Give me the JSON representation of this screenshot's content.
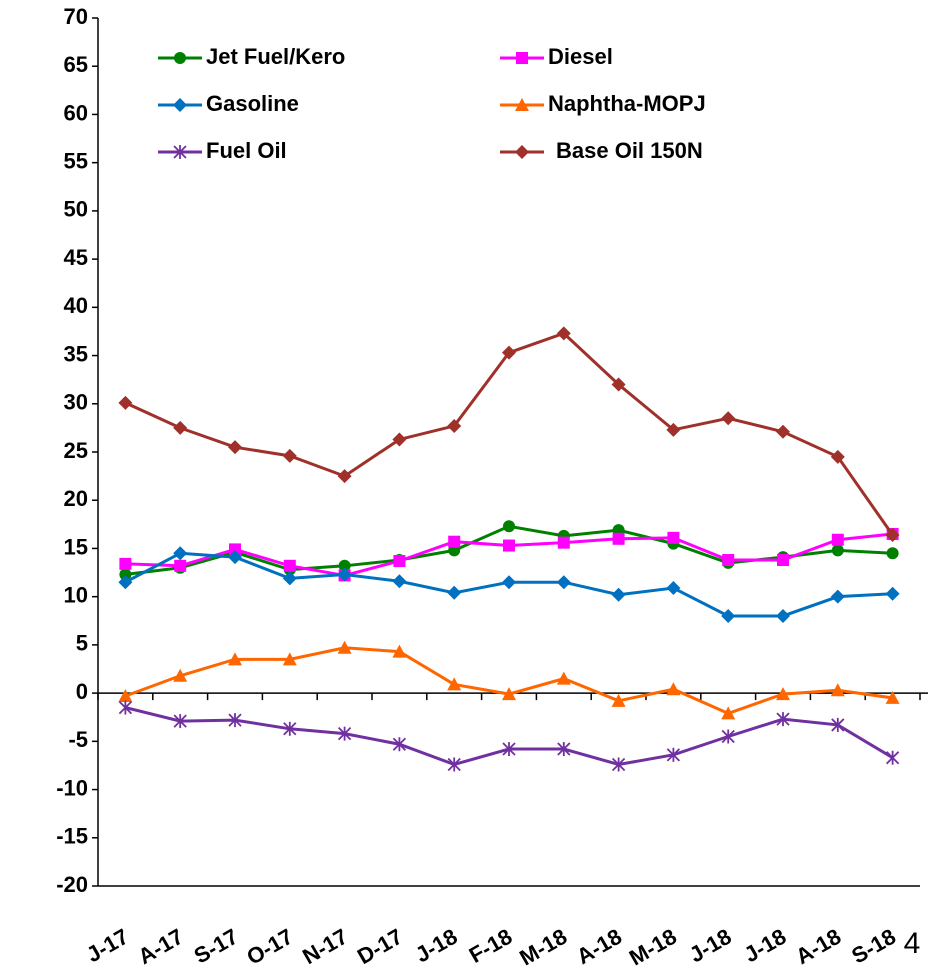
{
  "chart_data": {
    "type": "line",
    "categories": [
      "J-17",
      "A-17",
      "S-17",
      "O-17",
      "N-17",
      "D-17",
      "J-18",
      "F-18",
      "M-18",
      "A-18",
      "M-18",
      "J-18",
      "J-18",
      "A-18",
      "S-18"
    ],
    "series": [
      {
        "name": "Jet Fuel/Kero",
        "color": "#008000",
        "marker": "circle",
        "values": [
          12.3,
          13,
          14.6,
          12.8,
          13.2,
          13.8,
          14.8,
          17.3,
          16.3,
          16.9,
          15.5,
          13.5,
          14.1,
          14.8,
          14.5
        ]
      },
      {
        "name": "Diesel",
        "color": "#ff00ff",
        "marker": "square",
        "values": [
          13.4,
          13.2,
          14.9,
          13.2,
          12.2,
          13.7,
          15.7,
          15.3,
          15.6,
          16,
          16.1,
          13.8,
          13.8,
          15.9,
          16.5
        ]
      },
      {
        "name": "Gasoline",
        "color": "#0070c0",
        "marker": "diamond",
        "values": [
          11.5,
          14.5,
          14.1,
          11.9,
          12.3,
          11.6,
          10.4,
          11.5,
          11.5,
          10.2,
          10.9,
          8,
          8,
          10,
          10.3
        ]
      },
      {
        "name": "Naphtha-MOPJ",
        "color": "#ff6600",
        "marker": "triangle",
        "values": [
          -0.3,
          1.8,
          3.5,
          3.5,
          4.7,
          4.3,
          0.9,
          -0.1,
          1.5,
          -0.8,
          0.4,
          -2.1,
          -0.1,
          0.3,
          -0.5
        ]
      },
      {
        "name": "Fuel Oil",
        "color": "#7030a0",
        "marker": "asterisk",
        "values": [
          -1.5,
          -2.9,
          -2.8,
          -3.7,
          -4.2,
          -5.3,
          -7.4,
          -5.8,
          -5.8,
          -7.4,
          -6.4,
          -4.5,
          -2.7,
          -3.3,
          -6.7
        ]
      },
      {
        "name": "Base Oil 150N",
        "color": "#a0302a",
        "marker": "diamond",
        "values": [
          30.1,
          27.5,
          25.5,
          24.6,
          22.5,
          26.3,
          27.7,
          35.3,
          37.3,
          32,
          27.3,
          28.5,
          27.1,
          24.5,
          16.4
        ]
      }
    ],
    "ylim": [
      -20,
      70
    ],
    "yticks": [
      -20,
      -15,
      -10,
      -5,
      0,
      5,
      10,
      15,
      20,
      25,
      30,
      35,
      40,
      45,
      50,
      55,
      60,
      65,
      70
    ],
    "grid": false,
    "legend": "top",
    "page_number": "4"
  }
}
